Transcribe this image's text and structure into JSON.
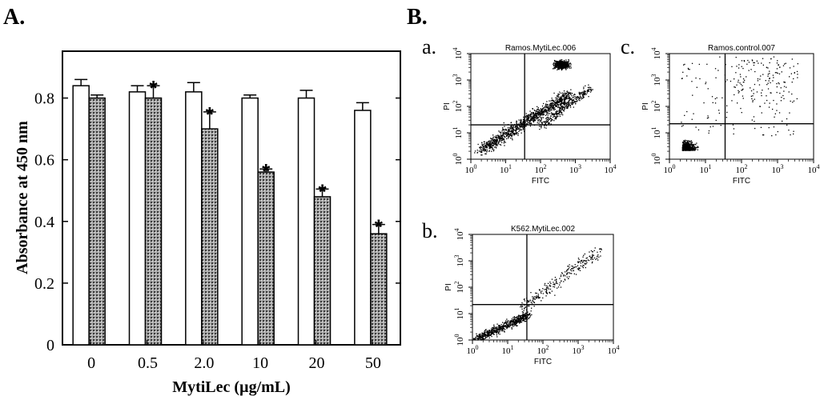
{
  "panel_labels": {
    "A": "A.",
    "B": "B."
  },
  "chart_data": [
    {
      "type": "bar",
      "panel": "A.",
      "categories": [
        "0",
        "0.5",
        "2.0",
        "10",
        "20",
        "50"
      ],
      "series": [
        {
          "color": "#ffffff",
          "pattern": "plain",
          "values": [
            0.84,
            0.82,
            0.82,
            0.8,
            0.8,
            0.76
          ],
          "errors": [
            0.02,
            0.02,
            0.03,
            0.01,
            0.025,
            0.025
          ]
        },
        {
          "color": "#9a9a9a",
          "pattern": "dotted-grid",
          "values": [
            0.8,
            0.8,
            0.7,
            0.56,
            0.48,
            0.36
          ],
          "errors": [
            0.01,
            0.04,
            0.055,
            0.01,
            0.025,
            0.03
          ]
        }
      ],
      "significance": [
        "",
        "*",
        "*",
        "*",
        "*",
        "*"
      ],
      "xlabel": "MytiLec (µg/mL)",
      "ylabel": "Absorbance at 450 nm",
      "ylim": [
        0,
        0.9
      ],
      "yticks": [
        "0",
        "0.2",
        "0.4",
        "0.6",
        "0.8"
      ],
      "grid": false
    },
    {
      "type": "scatter",
      "panel": "B.",
      "subpanel": "a.",
      "title": "Ramos.MytiLec.006",
      "xlabel": "FITC",
      "ylabel": "PI",
      "scale": "log",
      "xlim": [
        "10^0",
        "10^4"
      ],
      "ylim": [
        "10^0",
        "10^4"
      ],
      "quadrant_gate": {
        "x": 35,
        "y": 20
      },
      "population": "dense diagonal spread from low-low to high-high"
    },
    {
      "type": "scatter",
      "panel": "B.",
      "subpanel": "b.",
      "title": "K562.MytiLec.002",
      "xlabel": "FITC",
      "ylabel": "PI",
      "scale": "log",
      "xlim": [
        "10^0",
        "10^4"
      ],
      "ylim": [
        "10^0",
        "10^4"
      ],
      "quadrant_gate": {
        "x": 35,
        "y": 22
      },
      "population": "diagonal band, denser at low values"
    },
    {
      "type": "scatter",
      "panel": "B.",
      "subpanel": "c.",
      "title": "Ramos.control.007",
      "xlabel": "FITC",
      "ylabel": "PI",
      "scale": "log",
      "xlim": [
        "10^0",
        "10^4"
      ],
      "ylim": [
        "10^0",
        "10^4"
      ],
      "quadrant_gate": {
        "x": 35,
        "y": 22
      },
      "population": "dense cluster near origin, sparse upper-right"
    }
  ]
}
